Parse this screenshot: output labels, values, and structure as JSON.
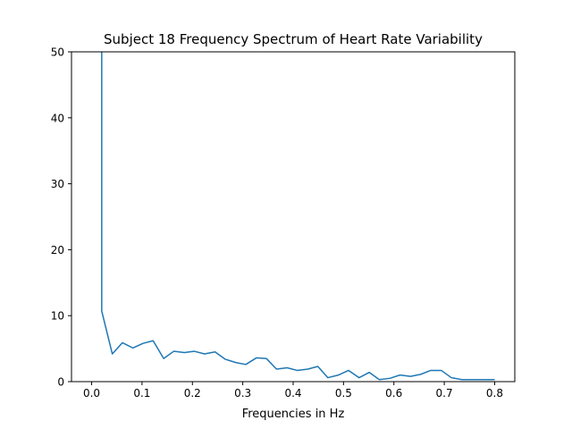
{
  "chart_data": {
    "type": "line",
    "title": "Subject 18 Frequency Spectrum of Heart Rate Variability",
    "xlabel": "Frequencies in Hz",
    "ylabel": "",
    "xlim": [
      -0.04,
      0.84
    ],
    "ylim": [
      0,
      50
    ],
    "x_ticks": [
      0.0,
      0.1,
      0.2,
      0.3,
      0.4,
      0.5,
      0.6,
      0.7,
      0.8
    ],
    "x_tick_labels": [
      "0.0",
      "0.1",
      "0.2",
      "0.3",
      "0.4",
      "0.5",
      "0.6",
      "0.7",
      "0.8"
    ],
    "y_ticks": [
      0,
      10,
      20,
      30,
      40,
      50
    ],
    "y_tick_labels": [
      "0",
      "10",
      "20",
      "30",
      "40",
      "50"
    ],
    "grid": false,
    "series": [
      {
        "color": "#1f77b4",
        "x": [
          0.02,
          0.02,
          0.041,
          0.061,
          0.082,
          0.102,
          0.122,
          0.143,
          0.163,
          0.184,
          0.204,
          0.224,
          0.245,
          0.265,
          0.286,
          0.306,
          0.327,
          0.347,
          0.367,
          0.388,
          0.408,
          0.429,
          0.449,
          0.469,
          0.49,
          0.51,
          0.531,
          0.551,
          0.571,
          0.592,
          0.612,
          0.633,
          0.653,
          0.673,
          0.694,
          0.714,
          0.735,
          0.755,
          0.776,
          0.8
        ],
        "values": [
          50,
          10.7,
          4.2,
          5.9,
          5.1,
          5.8,
          6.2,
          3.5,
          4.6,
          4.4,
          4.6,
          4.2,
          4.5,
          3.4,
          2.9,
          2.6,
          3.6,
          3.5,
          1.9,
          2.1,
          1.7,
          1.9,
          2.3,
          0.6,
          1.0,
          1.7,
          0.6,
          1.4,
          0.3,
          0.5,
          1.0,
          0.8,
          1.1,
          1.7,
          1.7,
          0.6,
          0.3,
          0.3,
          0.3,
          0.3
        ]
      }
    ]
  }
}
